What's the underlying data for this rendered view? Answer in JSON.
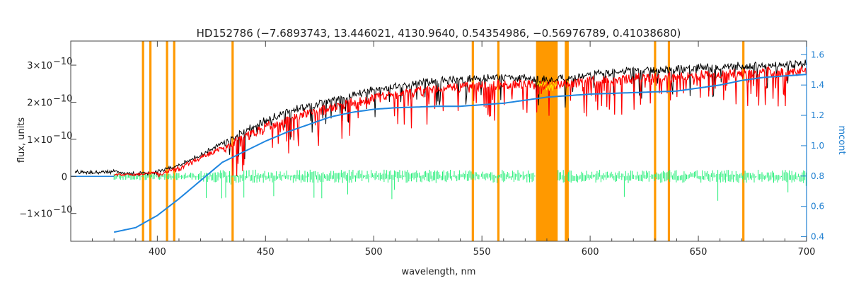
{
  "chart_data": {
    "type": "line",
    "title": "HD152786    (−7.6893743, 13.446021, 4130.9640, 0.54354986, −0.56976789, 0.41038680)",
    "xlabel": "wavelength, nm",
    "ylabel": "flux, units",
    "y2label": "mcont",
    "xlim": [
      360,
      700
    ],
    "ylim": [
      -1.75e-10,
      3.65e-10
    ],
    "y2lim": [
      0.37,
      1.69
    ],
    "x_ticks": [
      400,
      450,
      500,
      550,
      600,
      650,
      700
    ],
    "y_ticks": [
      {
        "value": -1e-10,
        "mant": "−1×10",
        "exp": "−10"
      },
      {
        "value": 0,
        "mant": "0",
        "exp": ""
      },
      {
        "value": 1e-10,
        "mant": "1×10",
        "exp": "−10"
      },
      {
        "value": 2e-10,
        "mant": "2×10",
        "exp": "−10"
      },
      {
        "value": 3e-10,
        "mant": "3×10",
        "exp": "−10"
      }
    ],
    "y2_ticks": [
      "0.4",
      "0.6",
      "0.8",
      "1.0",
      "1.2",
      "1.4",
      "1.6"
    ],
    "grid": false,
    "legend": "none",
    "colors": {
      "observed": "#000000",
      "model": "#ff0000",
      "residual": "#22ee77",
      "continuum": "#1f86e0",
      "masked_lines": "#ff9900",
      "masked_band_fill": "#ffee00",
      "right_axis": "#1f7fd0"
    },
    "series": [
      {
        "role": "observed",
        "x": [
          362,
          380,
          390,
          400,
          410,
          420,
          430,
          440,
          450,
          460,
          470,
          480,
          490,
          500,
          510,
          520,
          530,
          540,
          550,
          560,
          570,
          580,
          590,
          600,
          610,
          620,
          630,
          640,
          650,
          660,
          670,
          680,
          690,
          700
        ],
        "values": [
          1.2e-11,
          1.2e-11,
          6e-12,
          1.2e-11,
          3e-11,
          5.8e-11,
          9e-11,
          1.28e-10,
          1.55e-10,
          1.78e-10,
          1.95e-10,
          2.1e-10,
          2.25e-10,
          2.4e-10,
          2.5e-10,
          2.56e-10,
          2.62e-10,
          2.66e-10,
          2.72e-10,
          2.72e-10,
          2.7e-10,
          2.65e-10,
          2.7e-10,
          2.8e-10,
          2.88e-10,
          2.92e-10,
          2.92e-10,
          2.94e-10,
          2.98e-10,
          3e-10,
          3.03e-10,
          3.06e-10,
          3.08e-10,
          3.1e-10
        ]
      },
      {
        "role": "model",
        "x": [
          380,
          390,
          400,
          410,
          420,
          430,
          440,
          450,
          460,
          470,
          480,
          490,
          500,
          510,
          520,
          530,
          540,
          550,
          560,
          570,
          580,
          590,
          600,
          610,
          620,
          630,
          640,
          650,
          660,
          670,
          680,
          690,
          700
        ],
        "values": [
          2e-12,
          2e-12,
          8e-12,
          2.5e-11,
          5.2e-11,
          8.2e-11,
          1.15e-10,
          1.42e-10,
          1.62e-10,
          1.8e-10,
          1.95e-10,
          2.08e-10,
          2.2e-10,
          2.3e-10,
          2.38e-10,
          2.45e-10,
          2.5e-10,
          2.55e-10,
          2.58e-10,
          2.58e-10,
          2.55e-10,
          2.58e-10,
          2.65e-10,
          2.7e-10,
          2.74e-10,
          2.76e-10,
          2.78e-10,
          2.82e-10,
          2.85e-10,
          2.88e-10,
          2.9e-10,
          2.92e-10,
          2.93e-10
        ]
      },
      {
        "role": "residual",
        "x": [
          380,
          700
        ],
        "values": [
          0,
          0
        ]
      },
      {
        "role": "continuum",
        "axis": "right",
        "x": [
          380,
          390,
          400,
          410,
          420,
          430,
          440,
          450,
          460,
          470,
          480,
          490,
          500,
          510,
          520,
          530,
          540,
          550,
          560,
          570,
          580,
          590,
          600,
          610,
          620,
          630,
          640,
          650,
          660,
          670,
          680,
          690,
          700
        ],
        "values": [
          0.43,
          0.46,
          0.54,
          0.65,
          0.77,
          0.89,
          0.96,
          1.03,
          1.09,
          1.14,
          1.19,
          1.22,
          1.24,
          1.25,
          1.255,
          1.26,
          1.26,
          1.27,
          1.28,
          1.3,
          1.32,
          1.33,
          1.34,
          1.345,
          1.35,
          1.355,
          1.36,
          1.38,
          1.4,
          1.43,
          1.45,
          1.46,
          1.47
        ]
      }
    ],
    "masked_lines": [
      393.4,
      396.8,
      404.5,
      407.8,
      434.8,
      545.8,
      557.6,
      588.8,
      589.6,
      630.0,
      636.4,
      670.8
    ],
    "masked_band": [
      575,
      585
    ]
  }
}
